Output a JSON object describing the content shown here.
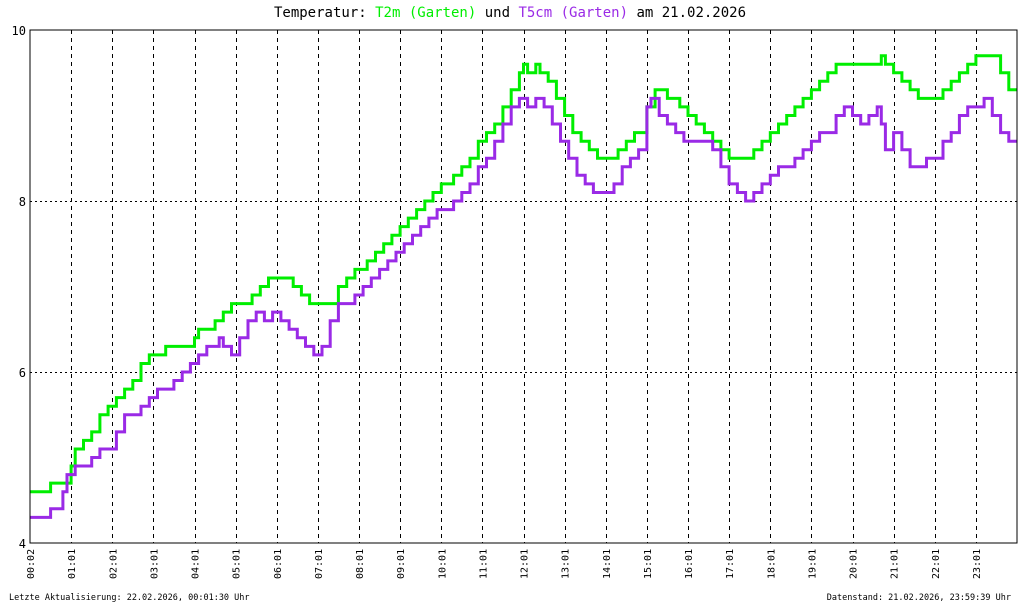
{
  "title": {
    "prefix": "Temperatur: ",
    "series1": "T2m (Garten)",
    "joiner": " und ",
    "series2": "T5cm (Garten)",
    "suffix": " am 21.02.2026"
  },
  "footer": {
    "left": "Letzte Aktualisierung: 22.02.2026, 00:01:30 Uhr",
    "right": "Datenstand: 21.02.2026, 23:59:39 Uhr"
  },
  "colors": {
    "t2m": "#00ee00",
    "t5cm": "#9a2ae6",
    "grid": "#000000",
    "background": "#ffffff"
  },
  "chart_data": {
    "type": "line",
    "title": "Temperatur: T2m (Garten) und T5cm (Garten) am 21.02.2026",
    "x_unit": "hours",
    "xlim": [
      0.0,
      24.0
    ],
    "ylim": [
      4,
      10
    ],
    "yticks": [
      4,
      6,
      8,
      10
    ],
    "xticks": [
      {
        "x": 0.0,
        "label": "00:02"
      },
      {
        "x": 1.0,
        "label": "01:01"
      },
      {
        "x": 2.0,
        "label": "02:01"
      },
      {
        "x": 3.0,
        "label": "03:01"
      },
      {
        "x": 4.0,
        "label": "04:01"
      },
      {
        "x": 5.0,
        "label": "05:01"
      },
      {
        "x": 6.0,
        "label": "06:01"
      },
      {
        "x": 7.0,
        "label": "07:01"
      },
      {
        "x": 8.0,
        "label": "08:01"
      },
      {
        "x": 9.0,
        "label": "09:01"
      },
      {
        "x": 10.0,
        "label": "10:01"
      },
      {
        "x": 11.0,
        "label": "11:01"
      },
      {
        "x": 12.0,
        "label": "12:01"
      },
      {
        "x": 13.0,
        "label": "13:01"
      },
      {
        "x": 14.0,
        "label": "14:01"
      },
      {
        "x": 15.0,
        "label": "15:01"
      },
      {
        "x": 16.0,
        "label": "16:01"
      },
      {
        "x": 17.0,
        "label": "17:01"
      },
      {
        "x": 18.0,
        "label": "18:01"
      },
      {
        "x": 19.0,
        "label": "19:01"
      },
      {
        "x": 20.0,
        "label": "20:01"
      },
      {
        "x": 21.0,
        "label": "21:01"
      },
      {
        "x": 22.0,
        "label": "22:01"
      },
      {
        "x": 23.0,
        "label": "23:01"
      }
    ],
    "grid": true,
    "series": [
      {
        "name": "T2m (Garten)",
        "points": [
          [
            0.0,
            4.6
          ],
          [
            0.4,
            4.6
          ],
          [
            0.5,
            4.7
          ],
          [
            0.8,
            4.7
          ],
          [
            1.0,
            4.9
          ],
          [
            1.1,
            5.1
          ],
          [
            1.3,
            5.2
          ],
          [
            1.5,
            5.3
          ],
          [
            1.7,
            5.5
          ],
          [
            1.9,
            5.6
          ],
          [
            2.1,
            5.7
          ],
          [
            2.3,
            5.8
          ],
          [
            2.5,
            5.9
          ],
          [
            2.7,
            6.1
          ],
          [
            2.9,
            6.2
          ],
          [
            3.1,
            6.2
          ],
          [
            3.3,
            6.3
          ],
          [
            3.5,
            6.3
          ],
          [
            3.8,
            6.3
          ],
          [
            4.0,
            6.4
          ],
          [
            4.1,
            6.5
          ],
          [
            4.3,
            6.5
          ],
          [
            4.5,
            6.6
          ],
          [
            4.7,
            6.7
          ],
          [
            4.9,
            6.8
          ],
          [
            5.1,
            6.8
          ],
          [
            5.3,
            6.8
          ],
          [
            5.4,
            6.9
          ],
          [
            5.6,
            7.0
          ],
          [
            5.8,
            7.1
          ],
          [
            6.2,
            7.1
          ],
          [
            6.4,
            7.0
          ],
          [
            6.6,
            6.9
          ],
          [
            6.8,
            6.8
          ],
          [
            7.0,
            6.8
          ],
          [
            7.3,
            6.8
          ],
          [
            7.5,
            7.0
          ],
          [
            7.7,
            7.1
          ],
          [
            7.9,
            7.2
          ],
          [
            8.2,
            7.3
          ],
          [
            8.4,
            7.4
          ],
          [
            8.6,
            7.5
          ],
          [
            8.8,
            7.6
          ],
          [
            9.0,
            7.7
          ],
          [
            9.2,
            7.8
          ],
          [
            9.4,
            7.9
          ],
          [
            9.6,
            8.0
          ],
          [
            9.8,
            8.1
          ],
          [
            10.0,
            8.2
          ],
          [
            10.3,
            8.3
          ],
          [
            10.5,
            8.4
          ],
          [
            10.7,
            8.5
          ],
          [
            10.9,
            8.7
          ],
          [
            11.1,
            8.8
          ],
          [
            11.3,
            8.9
          ],
          [
            11.5,
            9.1
          ],
          [
            11.7,
            9.3
          ],
          [
            11.9,
            9.5
          ],
          [
            12.0,
            9.6
          ],
          [
            12.1,
            9.5
          ],
          [
            12.3,
            9.6
          ],
          [
            12.4,
            9.5
          ],
          [
            12.6,
            9.4
          ],
          [
            12.8,
            9.2
          ],
          [
            13.0,
            9.0
          ],
          [
            13.2,
            8.8
          ],
          [
            13.4,
            8.7
          ],
          [
            13.6,
            8.6
          ],
          [
            13.8,
            8.5
          ],
          [
            14.1,
            8.5
          ],
          [
            14.3,
            8.6
          ],
          [
            14.5,
            8.7
          ],
          [
            14.7,
            8.8
          ],
          [
            14.9,
            8.8
          ],
          [
            15.0,
            9.1
          ],
          [
            15.2,
            9.3
          ],
          [
            15.5,
            9.2
          ],
          [
            15.8,
            9.1
          ],
          [
            16.0,
            9.0
          ],
          [
            16.2,
            8.9
          ],
          [
            16.4,
            8.8
          ],
          [
            16.6,
            8.7
          ],
          [
            16.8,
            8.6
          ],
          [
            17.0,
            8.5
          ],
          [
            17.4,
            8.5
          ],
          [
            17.6,
            8.6
          ],
          [
            17.8,
            8.7
          ],
          [
            18.0,
            8.8
          ],
          [
            18.2,
            8.9
          ],
          [
            18.4,
            9.0
          ],
          [
            18.6,
            9.1
          ],
          [
            18.8,
            9.2
          ],
          [
            19.0,
            9.3
          ],
          [
            19.2,
            9.4
          ],
          [
            19.4,
            9.5
          ],
          [
            19.6,
            9.6
          ],
          [
            20.0,
            9.6
          ],
          [
            20.5,
            9.6
          ],
          [
            20.7,
            9.7
          ],
          [
            20.8,
            9.6
          ],
          [
            21.0,
            9.5
          ],
          [
            21.2,
            9.4
          ],
          [
            21.4,
            9.3
          ],
          [
            21.6,
            9.2
          ],
          [
            22.0,
            9.2
          ],
          [
            22.2,
            9.3
          ],
          [
            22.4,
            9.4
          ],
          [
            22.6,
            9.5
          ],
          [
            22.8,
            9.6
          ],
          [
            23.0,
            9.7
          ],
          [
            23.4,
            9.7
          ],
          [
            23.6,
            9.5
          ],
          [
            23.8,
            9.3
          ],
          [
            24.0,
            9.3
          ]
        ]
      },
      {
        "name": "T5cm (Garten)",
        "points": [
          [
            0.0,
            4.3
          ],
          [
            0.4,
            4.3
          ],
          [
            0.5,
            4.4
          ],
          [
            0.7,
            4.4
          ],
          [
            0.8,
            4.6
          ],
          [
            0.9,
            4.8
          ],
          [
            1.1,
            4.9
          ],
          [
            1.3,
            4.9
          ],
          [
            1.5,
            5.0
          ],
          [
            1.7,
            5.1
          ],
          [
            2.0,
            5.1
          ],
          [
            2.1,
            5.3
          ],
          [
            2.3,
            5.5
          ],
          [
            2.5,
            5.5
          ],
          [
            2.7,
            5.6
          ],
          [
            2.9,
            5.7
          ],
          [
            3.1,
            5.8
          ],
          [
            3.3,
            5.8
          ],
          [
            3.5,
            5.9
          ],
          [
            3.7,
            6.0
          ],
          [
            3.9,
            6.1
          ],
          [
            4.1,
            6.2
          ],
          [
            4.3,
            6.3
          ],
          [
            4.5,
            6.3
          ],
          [
            4.6,
            6.4
          ],
          [
            4.7,
            6.3
          ],
          [
            4.9,
            6.2
          ],
          [
            5.1,
            6.4
          ],
          [
            5.3,
            6.6
          ],
          [
            5.5,
            6.7
          ],
          [
            5.7,
            6.6
          ],
          [
            5.9,
            6.7
          ],
          [
            6.1,
            6.6
          ],
          [
            6.3,
            6.5
          ],
          [
            6.5,
            6.4
          ],
          [
            6.7,
            6.3
          ],
          [
            6.9,
            6.2
          ],
          [
            7.1,
            6.3
          ],
          [
            7.3,
            6.6
          ],
          [
            7.5,
            6.8
          ],
          [
            7.7,
            6.8
          ],
          [
            7.9,
            6.9
          ],
          [
            8.1,
            7.0
          ],
          [
            8.3,
            7.1
          ],
          [
            8.5,
            7.2
          ],
          [
            8.7,
            7.3
          ],
          [
            8.9,
            7.4
          ],
          [
            9.1,
            7.5
          ],
          [
            9.3,
            7.6
          ],
          [
            9.5,
            7.7
          ],
          [
            9.7,
            7.8
          ],
          [
            9.9,
            7.9
          ],
          [
            10.1,
            7.9
          ],
          [
            10.3,
            8.0
          ],
          [
            10.5,
            8.1
          ],
          [
            10.7,
            8.2
          ],
          [
            10.9,
            8.4
          ],
          [
            11.1,
            8.5
          ],
          [
            11.3,
            8.7
          ],
          [
            11.5,
            8.9
          ],
          [
            11.7,
            9.1
          ],
          [
            11.9,
            9.2
          ],
          [
            12.1,
            9.1
          ],
          [
            12.3,
            9.2
          ],
          [
            12.5,
            9.1
          ],
          [
            12.7,
            8.9
          ],
          [
            12.9,
            8.7
          ],
          [
            13.1,
            8.5
          ],
          [
            13.3,
            8.3
          ],
          [
            13.5,
            8.2
          ],
          [
            13.7,
            8.1
          ],
          [
            14.0,
            8.1
          ],
          [
            14.2,
            8.2
          ],
          [
            14.4,
            8.4
          ],
          [
            14.6,
            8.5
          ],
          [
            14.8,
            8.6
          ],
          [
            15.0,
            9.1
          ],
          [
            15.1,
            9.2
          ],
          [
            15.3,
            9.0
          ],
          [
            15.5,
            8.9
          ],
          [
            15.7,
            8.8
          ],
          [
            15.9,
            8.7
          ],
          [
            16.1,
            8.7
          ],
          [
            16.4,
            8.7
          ],
          [
            16.6,
            8.6
          ],
          [
            16.8,
            8.4
          ],
          [
            17.0,
            8.2
          ],
          [
            17.2,
            8.1
          ],
          [
            17.4,
            8.0
          ],
          [
            17.6,
            8.1
          ],
          [
            17.8,
            8.2
          ],
          [
            18.0,
            8.3
          ],
          [
            18.2,
            8.4
          ],
          [
            18.4,
            8.4
          ],
          [
            18.6,
            8.5
          ],
          [
            18.8,
            8.6
          ],
          [
            19.0,
            8.7
          ],
          [
            19.2,
            8.8
          ],
          [
            19.4,
            8.8
          ],
          [
            19.6,
            9.0
          ],
          [
            19.8,
            9.1
          ],
          [
            20.0,
            9.0
          ],
          [
            20.2,
            8.9
          ],
          [
            20.4,
            9.0
          ],
          [
            20.6,
            9.1
          ],
          [
            20.7,
            8.9
          ],
          [
            20.8,
            8.6
          ],
          [
            21.0,
            8.8
          ],
          [
            21.2,
            8.6
          ],
          [
            21.4,
            8.4
          ],
          [
            21.6,
            8.4
          ],
          [
            21.8,
            8.5
          ],
          [
            22.0,
            8.5
          ],
          [
            22.2,
            8.7
          ],
          [
            22.4,
            8.8
          ],
          [
            22.6,
            9.0
          ],
          [
            22.8,
            9.1
          ],
          [
            23.0,
            9.1
          ],
          [
            23.2,
            9.2
          ],
          [
            23.4,
            9.0
          ],
          [
            23.6,
            8.8
          ],
          [
            23.8,
            8.7
          ],
          [
            24.0,
            8.7
          ]
        ]
      }
    ]
  }
}
